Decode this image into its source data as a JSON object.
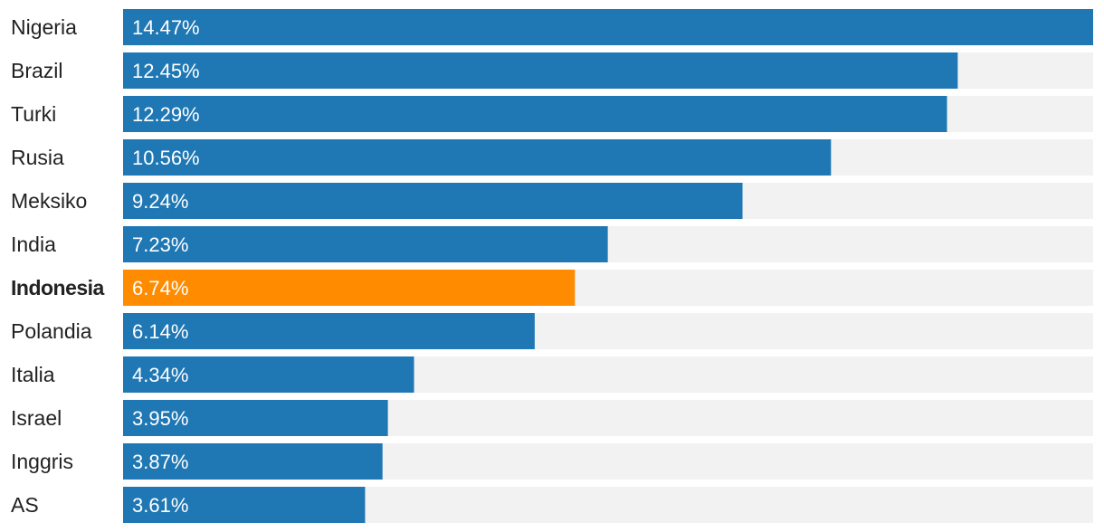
{
  "chart_data": {
    "type": "bar",
    "orientation": "horizontal",
    "categories": [
      "Nigeria",
      "Brazil",
      "Turki",
      "Rusia",
      "Meksiko",
      "India",
      "Indonesia",
      "Polandia",
      "Italia",
      "Israel",
      "Inggris",
      "AS"
    ],
    "values": [
      14.47,
      12.45,
      12.29,
      10.56,
      9.24,
      7.23,
      6.74,
      6.14,
      4.34,
      3.95,
      3.87,
      3.61
    ],
    "value_labels": [
      "14.47%",
      "12.45%",
      "12.29%",
      "10.56%",
      "9.24%",
      "7.23%",
      "6.74%",
      "6.14%",
      "4.34%",
      "3.95%",
      "3.87%",
      "3.61%"
    ],
    "highlight": "Indonesia",
    "xlim": [
      0,
      14.47
    ],
    "grid": false,
    "legend": "none",
    "colors": {
      "bar": "#1f77b4",
      "highlight": "#ff8c00",
      "track": "#f2f2f2"
    }
  }
}
